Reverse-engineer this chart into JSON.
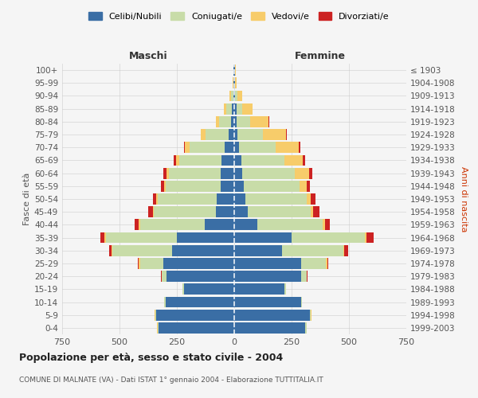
{
  "age_groups": [
    "0-4",
    "5-9",
    "10-14",
    "15-19",
    "20-24",
    "25-29",
    "30-34",
    "35-39",
    "40-44",
    "45-49",
    "50-54",
    "55-59",
    "60-64",
    "65-69",
    "70-74",
    "75-79",
    "80-84",
    "85-89",
    "90-94",
    "95-99",
    "100+"
  ],
  "birth_years": [
    "1999-2003",
    "1994-1998",
    "1989-1993",
    "1984-1988",
    "1979-1983",
    "1974-1978",
    "1969-1973",
    "1964-1968",
    "1959-1963",
    "1954-1958",
    "1949-1953",
    "1944-1948",
    "1939-1943",
    "1934-1938",
    "1929-1933",
    "1924-1928",
    "1919-1923",
    "1914-1918",
    "1909-1913",
    "1904-1908",
    "≤ 1903"
  ],
  "colors": {
    "celibe": "#3a6ea5",
    "coniugato": "#c8dca8",
    "vedovo": "#f7cc6a",
    "divorziato": "#cc2222"
  },
  "maschi": {
    "celibe": [
      330,
      340,
      300,
      220,
      295,
      310,
      270,
      250,
      130,
      80,
      75,
      60,
      60,
      55,
      40,
      25,
      15,
      10,
      5,
      2,
      2
    ],
    "coniugato": [
      5,
      5,
      5,
      5,
      20,
      100,
      260,
      310,
      280,
      270,
      260,
      240,
      225,
      185,
      155,
      100,
      50,
      25,
      10,
      3,
      2
    ],
    "vedovo": [
      1,
      1,
      1,
      1,
      2,
      5,
      5,
      5,
      5,
      5,
      5,
      5,
      10,
      15,
      20,
      20,
      15,
      10,
      5,
      2,
      1
    ],
    "divorziato": [
      0,
      0,
      0,
      1,
      2,
      5,
      10,
      20,
      20,
      20,
      15,
      15,
      15,
      10,
      5,
      0,
      0,
      0,
      0,
      0,
      0
    ]
  },
  "femmine": {
    "nubile": [
      310,
      330,
      290,
      220,
      290,
      290,
      210,
      250,
      100,
      60,
      50,
      40,
      35,
      30,
      20,
      15,
      10,
      10,
      5,
      2,
      2
    ],
    "coniugata": [
      5,
      5,
      5,
      5,
      25,
      110,
      265,
      320,
      285,
      275,
      265,
      245,
      230,
      190,
      160,
      110,
      60,
      25,
      10,
      3,
      2
    ],
    "vedova": [
      1,
      1,
      1,
      1,
      2,
      5,
      5,
      8,
      10,
      10,
      20,
      30,
      60,
      80,
      100,
      100,
      80,
      45,
      20,
      5,
      2
    ],
    "divorziata": [
      0,
      0,
      0,
      1,
      2,
      5,
      15,
      30,
      20,
      25,
      20,
      15,
      15,
      10,
      8,
      5,
      2,
      0,
      0,
      0,
      0
    ]
  },
  "xlim": 750,
  "title": "Popolazione per età, sesso e stato civile - 2004",
  "subtitle": "COMUNE DI MALNATE (VA) - Dati ISTAT 1° gennaio 2004 - Elaborazione TUTTITALIA.IT",
  "ylabel_left": "Fasce di età",
  "ylabel_right": "Anni di nascita",
  "header_maschi": "Maschi",
  "header_femmine": "Femmine",
  "legend_labels": [
    "Celibi/Nubili",
    "Coniugati/e",
    "Vedovi/e",
    "Divorziati/e"
  ],
  "legend_colors": [
    "#3a6ea5",
    "#c8dca8",
    "#f7cc6a",
    "#cc2222"
  ],
  "background_color": "#f5f5f5",
  "grid_color": "#cccccc"
}
